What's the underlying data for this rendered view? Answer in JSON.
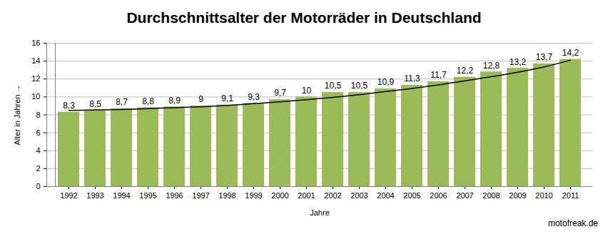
{
  "chart_data": {
    "type": "bar",
    "title": "Durchschnittsalter der Motorräder in Deutschland",
    "x_label": "Jahre",
    "y_label": "Alter in Jahren",
    "caption": "motofreak.de",
    "categories": [
      "1992",
      "1993",
      "1994",
      "1995",
      "1996",
      "1997",
      "1998",
      "1999",
      "2000",
      "2001",
      "2002",
      "2003",
      "2004",
      "2005",
      "2006",
      "2007",
      "2008",
      "2009",
      "2010",
      "2011"
    ],
    "series": [
      {
        "type": "bar",
        "color": "#9bbb59",
        "data_labels": true,
        "values": [
          8.3,
          8.5,
          8.7,
          8.8,
          8.9,
          9,
          9.1,
          9.3,
          9.7,
          10,
          10.5,
          10.5,
          10.9,
          11.3,
          11.7,
          12.2,
          12.8,
          13.2,
          13.7,
          14.2
        ],
        "value_labels": [
          "8,3",
          "8,5",
          "8,7",
          "8,8",
          "8,9",
          "9",
          "9,1",
          "9,3",
          "9,7",
          "10",
          "10,5",
          "10,5",
          "10,9",
          "11,3",
          "11,7",
          "12,2",
          "12,8",
          "13,2",
          "13,7",
          "14,2"
        ]
      },
      {
        "type": "line",
        "color": "#000000",
        "values": [
          8.5,
          8.55,
          8.6,
          8.7,
          8.8,
          8.9,
          9.05,
          9.25,
          9.45,
          9.7,
          9.95,
          10.25,
          10.6,
          10.95,
          11.35,
          11.8,
          12.25,
          12.75,
          13.35,
          14.1
        ]
      }
    ],
    "ylim": [
      0,
      16
    ],
    "yticks": [
      0,
      2,
      4,
      6,
      8,
      10,
      12,
      14,
      16
    ],
    "grid": true
  }
}
